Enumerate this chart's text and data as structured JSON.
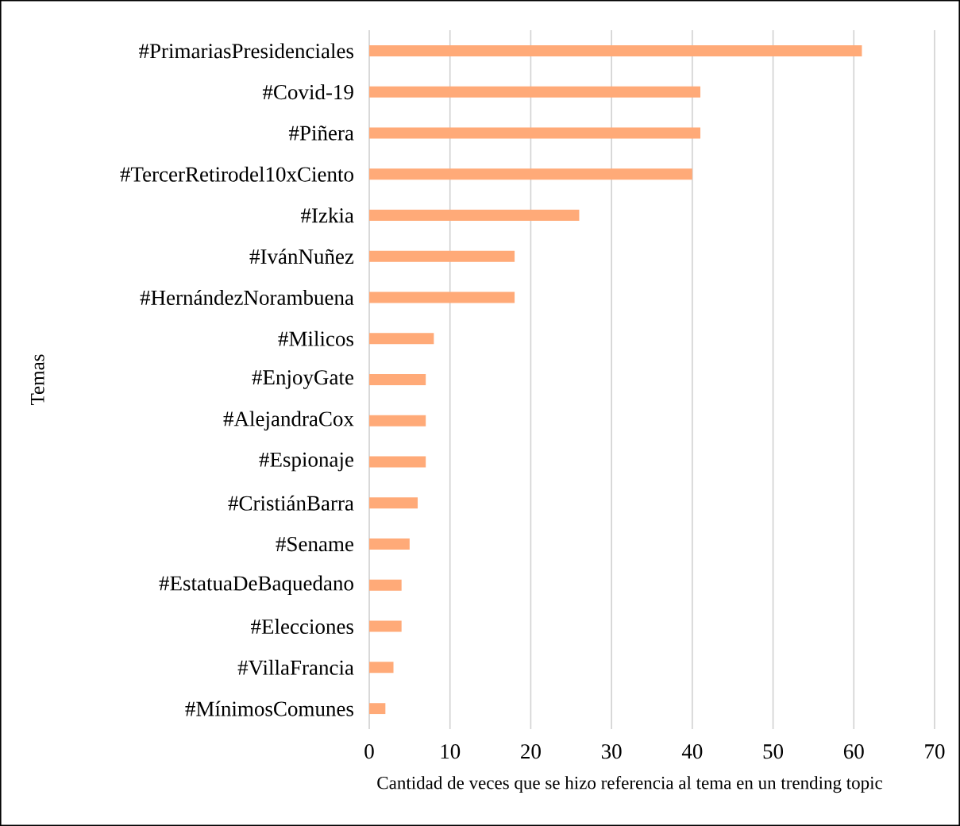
{
  "chart_data": {
    "type": "bar",
    "orientation": "horizontal",
    "xlabel": "Cantidad de veces que se hizo referencia al tema en un trending topic",
    "ylabel": "Temas",
    "categories": [
      "#PrimariasPresidenciales",
      "#Covid-19",
      "#Piñera",
      "#TercerRetirodel10xCiento",
      "#Izkia",
      "#IvánNuñez",
      "#HernándezNorambuena",
      "#Milicos",
      "#EnjoyGate",
      "#AlejandraCox",
      "#Espionaje",
      "#CristiánBarra",
      "#Sename",
      "#EstatuaDeBaquedano",
      "#Elecciones",
      "#VillaFrancia",
      "#MínimosComunes"
    ],
    "values": [
      61,
      41,
      41,
      40,
      26,
      18,
      18,
      8,
      7,
      7,
      7,
      6,
      5,
      4,
      4,
      3,
      2
    ],
    "color": "#ffaa78",
    "xlim": [
      0,
      70
    ],
    "xticks": [
      0,
      10,
      20,
      30,
      40,
      50,
      60,
      70
    ],
    "grid": "x"
  }
}
